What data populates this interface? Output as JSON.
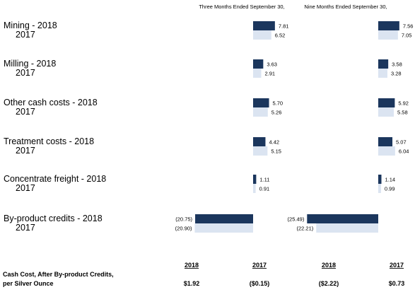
{
  "chart_data": {
    "type": "bar",
    "orientation": "horizontal",
    "colors": {
      "y2018": "#1b365d",
      "y2017": "#dbe4f1"
    },
    "panels": [
      {
        "title": "Three Months Ended September 30,"
      },
      {
        "title": "Nine Months Ended September 30,"
      }
    ],
    "categories": [
      {
        "label_2018": "Mining  - 2018",
        "label_2017": "2017",
        "three_months": {
          "v2018": 7.81,
          "t2018": "7.81",
          "v2017": 6.52,
          "t2017": "6.52"
        },
        "nine_months": {
          "v2018": 7.56,
          "t2018": "7.56",
          "v2017": 7.05,
          "t2017": "7.05"
        }
      },
      {
        "label_2018": "Milling  - 2018",
        "label_2017": "2017",
        "three_months": {
          "v2018": 3.63,
          "t2018": "3.63",
          "v2017": 2.91,
          "t2017": "2.91"
        },
        "nine_months": {
          "v2018": 3.58,
          "t2018": "3.58",
          "v2017": 3.28,
          "t2017": "3.28"
        }
      },
      {
        "label_2018": "Other cash costs  - 2018",
        "label_2017": "2017",
        "three_months": {
          "v2018": 5.7,
          "t2018": "5.70",
          "v2017": 5.26,
          "t2017": "5.26"
        },
        "nine_months": {
          "v2018": 5.92,
          "t2018": "5.92",
          "v2017": 5.58,
          "t2017": "5.58"
        }
      },
      {
        "label_2018": "Treatment costs  - 2018",
        "label_2017": "2017",
        "three_months": {
          "v2018": 4.42,
          "t2018": "4.42",
          "v2017": 5.15,
          "t2017": "5.15"
        },
        "nine_months": {
          "v2018": 5.07,
          "t2018": "5.07",
          "v2017": 6.04,
          "t2017": "6.04"
        }
      },
      {
        "label_2018": "Concentrate freight  - 2018",
        "label_2017": "2017",
        "three_months": {
          "v2018": 1.11,
          "t2018": "1.11",
          "v2017": 0.91,
          "t2017": "0.91"
        },
        "nine_months": {
          "v2018": 1.14,
          "t2018": "1.14",
          "v2017": 0.99,
          "t2017": "0.99"
        }
      },
      {
        "label_2018": "By-product credits  - 2018",
        "label_2017": "2017",
        "three_months": {
          "v2018": -20.75,
          "t2018": "(20.75)",
          "v2017": -20.9,
          "t2017": "(20.90)"
        },
        "nine_months": {
          "v2018": -25.49,
          "t2018": "(25.49)",
          "v2017": -22.21,
          "t2017": "(22.21)"
        }
      }
    ],
    "footer": {
      "label_line1": "Cash Cost, After By-product Credits,",
      "label_line2": "per Silver Ounce",
      "columns": [
        {
          "year": "2018",
          "value": "$1.92"
        },
        {
          "year": "2017",
          "value": "($0.15)"
        },
        {
          "year": "2018",
          "value": "($2.22)"
        },
        {
          "year": "2017",
          "value": "$0.73"
        }
      ]
    }
  }
}
